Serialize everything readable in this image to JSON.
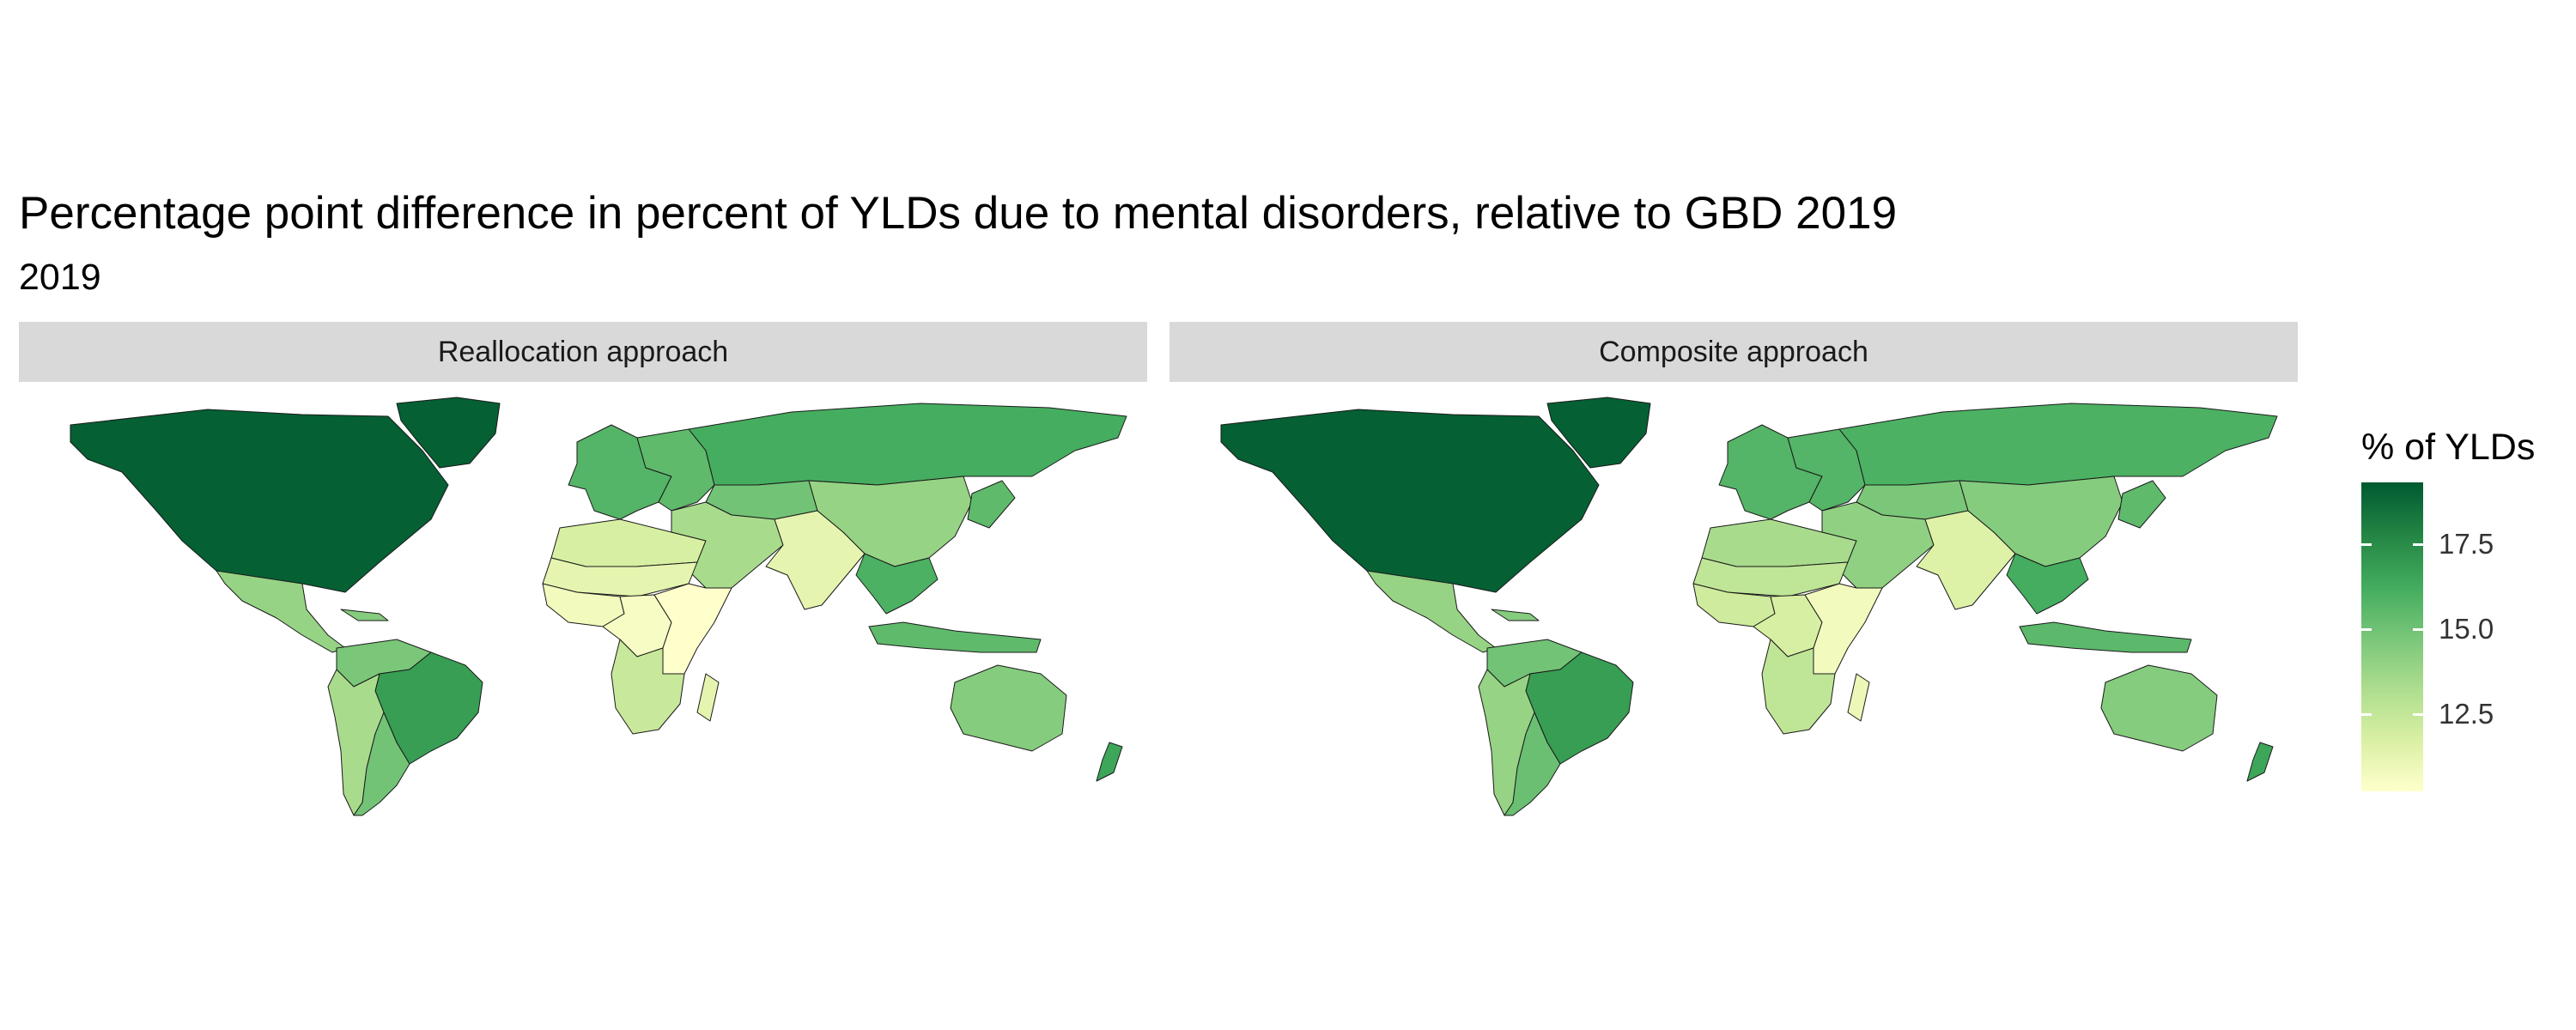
{
  "title": "Percentage point difference in percent of YLDs due to mental disorders, relative to GBD 2019",
  "subtitle": "2019",
  "panels": [
    {
      "label": "Reallocation approach"
    },
    {
      "label": "Composite approach"
    }
  ],
  "legend": {
    "title": "% of YLDs",
    "ticks": [
      "17.5",
      "15.0",
      "12.5"
    ],
    "range": [
      10.5,
      19.2
    ],
    "colors": [
      "#ffffcc",
      "#d9f0a3",
      "#addd8e",
      "#78c679",
      "#41ab5d",
      "#238443",
      "#005a32"
    ]
  },
  "regions": {
    "reallocation": {
      "north_america": 19.0,
      "greenland": 19.0,
      "central_america": 14.0,
      "caribbean": 14.5,
      "south_america_north": 14.8,
      "brazil": 16.8,
      "andes": 13.5,
      "southern_cone": 15.0,
      "western_europe": 15.8,
      "eastern_europe": 15.5,
      "russia": 16.2,
      "central_asia": 15.0,
      "north_africa": 12.0,
      "middle_east": 13.5,
      "sahel": 11.5,
      "west_africa": 11.0,
      "central_africa": 10.8,
      "east_africa": 10.5,
      "southern_africa": 12.5,
      "madagascar": 11.5,
      "south_asia": 11.5,
      "china": 14.0,
      "japan_korea": 15.5,
      "southeast_asia": 16.0,
      "indonesia": 15.5,
      "australia": 14.5,
      "new_zealand": 16.5
    },
    "composite": {
      "north_america": 19.0,
      "greenland": 19.0,
      "central_america": 14.0,
      "caribbean": 14.5,
      "south_america_north": 15.0,
      "brazil": 16.8,
      "andes": 14.0,
      "southern_cone": 15.2,
      "western_europe": 15.8,
      "eastern_europe": 15.8,
      "russia": 16.0,
      "central_asia": 14.8,
      "north_africa": 13.5,
      "middle_east": 14.2,
      "sahel": 12.8,
      "west_africa": 12.3,
      "central_africa": 12.0,
      "east_africa": 11.0,
      "southern_africa": 12.8,
      "madagascar": 11.2,
      "south_asia": 11.8,
      "china": 14.5,
      "japan_korea": 15.5,
      "southeast_asia": 16.2,
      "indonesia": 15.6,
      "australia": 14.5,
      "new_zealand": 16.5
    }
  }
}
